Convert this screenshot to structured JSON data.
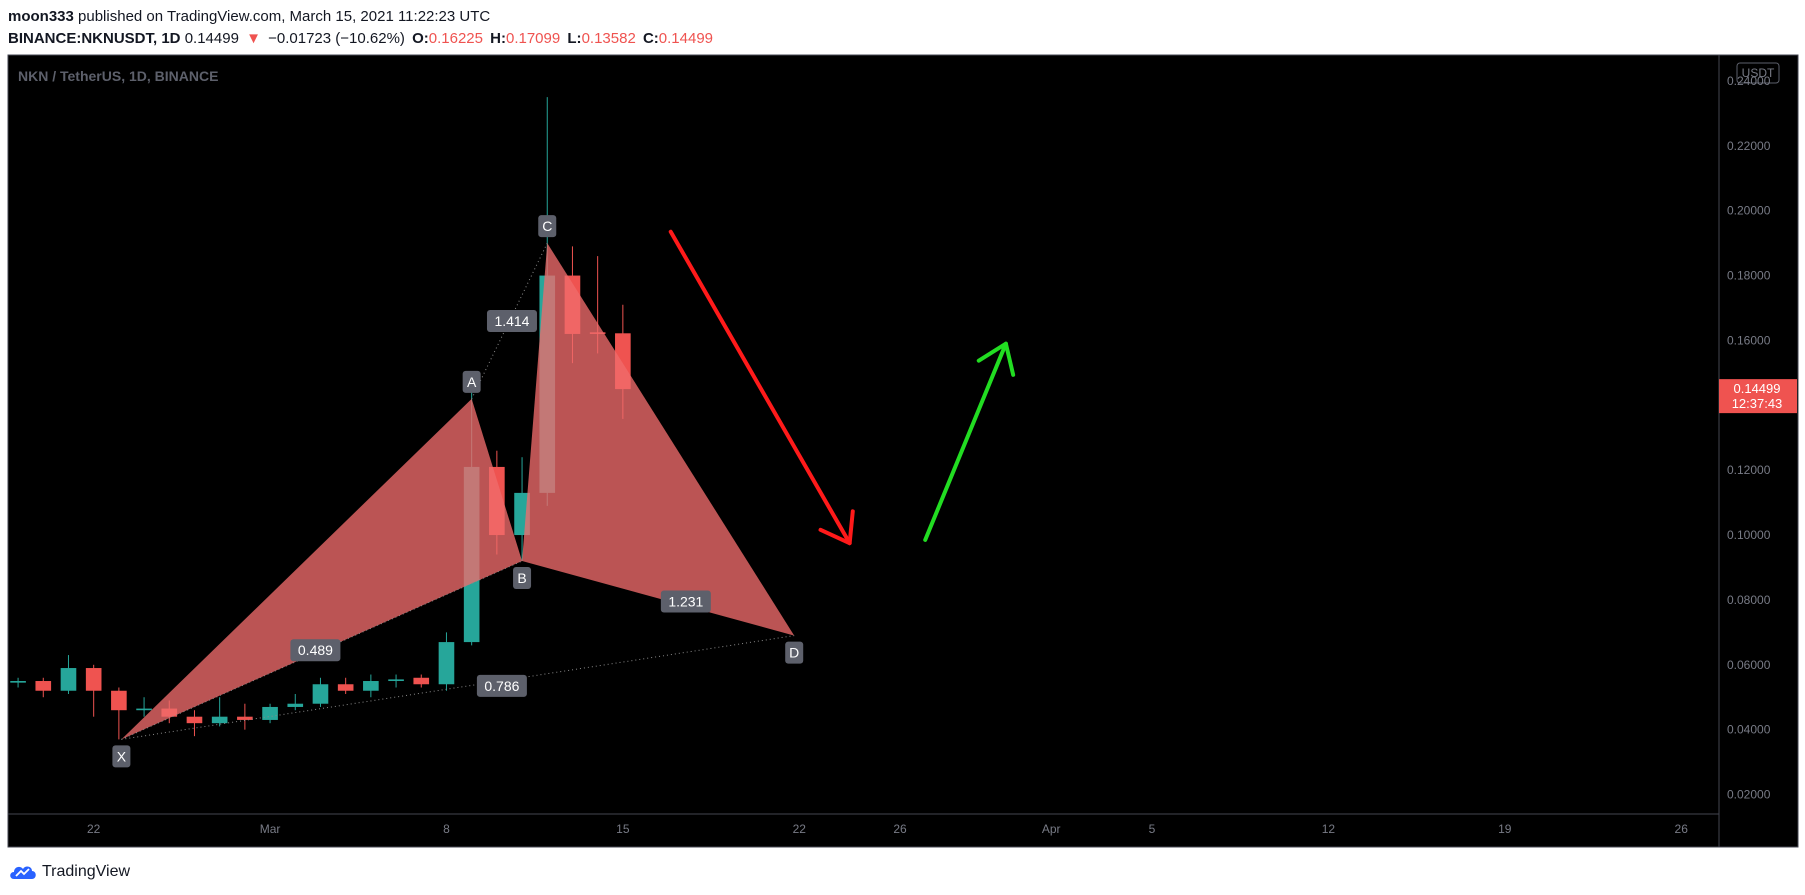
{
  "header": {
    "author": "moon333",
    "published": "published on TradingView.com, March 15, 2021 11:22:23 UTC",
    "symbol": "BINANCE:NKNUSDT, 1D",
    "last": "0.14499",
    "change_arrow": "▼",
    "change": "−0.01723 (−10.62%)",
    "o_label": "O:",
    "o_value": "0.16225",
    "h_label": "H:",
    "h_value": "0.17099",
    "l_label": "L:",
    "l_value": "0.13582",
    "c_label": "C:",
    "c_value": "0.14499"
  },
  "footer": {
    "brand": "TradingView",
    "logo_icon": "tradingview-cloud-icon"
  },
  "chart_data": {
    "type": "candlestick",
    "title": "NKN / TetherUS, 1D, BINANCE",
    "currency_badge": "USDT",
    "y_ticks": [
      "0.24000",
      "0.22000",
      "0.20000",
      "0.18000",
      "0.16000",
      "0.14000",
      "0.12000",
      "0.10000",
      "0.08000",
      "0.06000",
      "0.04000",
      "0.02000"
    ],
    "ylim": [
      0.014,
      0.248
    ],
    "x_ticks": [
      {
        "label": "22",
        "day": -7
      },
      {
        "label": "Mar",
        "day": 0
      },
      {
        "label": "8",
        "day": 7
      },
      {
        "label": "15",
        "day": 14
      },
      {
        "label": "22",
        "day": 21
      },
      {
        "label": "26",
        "day": 25
      },
      {
        "label": "Apr",
        "day": 31
      },
      {
        "label": "5",
        "day": 35
      },
      {
        "label": "12",
        "day": 42
      },
      {
        "label": "19",
        "day": 49
      },
      {
        "label": "26",
        "day": 56
      }
    ],
    "x_range_days": [
      -10.4,
      57.5
    ],
    "price_label": {
      "value": 0.14499,
      "price": "0.14499",
      "timer": "12:37:43",
      "color": "#ef5350"
    },
    "colors": {
      "up": "#26a69a",
      "down": "#ef5350",
      "pattern_fill": "#ef6c6c",
      "background": "#000000"
    },
    "candles": [
      {
        "day": -10,
        "o": 0.0545,
        "h": 0.056,
        "l": 0.053,
        "c": 0.055
      },
      {
        "day": -9,
        "o": 0.055,
        "h": 0.056,
        "l": 0.05,
        "c": 0.052
      },
      {
        "day": -8,
        "o": 0.052,
        "h": 0.063,
        "l": 0.051,
        "c": 0.059
      },
      {
        "day": -7,
        "o": 0.059,
        "h": 0.06,
        "l": 0.044,
        "c": 0.052
      },
      {
        "day": -6,
        "o": 0.052,
        "h": 0.053,
        "l": 0.037,
        "c": 0.046
      },
      {
        "day": -5,
        "o": 0.046,
        "h": 0.05,
        "l": 0.044,
        "c": 0.0465
      },
      {
        "day": -4,
        "o": 0.0465,
        "h": 0.049,
        "l": 0.042,
        "c": 0.044
      },
      {
        "day": -3,
        "o": 0.044,
        "h": 0.046,
        "l": 0.038,
        "c": 0.042
      },
      {
        "day": -2,
        "o": 0.042,
        "h": 0.05,
        "l": 0.041,
        "c": 0.044
      },
      {
        "day": -1,
        "o": 0.044,
        "h": 0.048,
        "l": 0.04,
        "c": 0.043
      },
      {
        "day": 0,
        "o": 0.043,
        "h": 0.048,
        "l": 0.042,
        "c": 0.047
      },
      {
        "day": 1,
        "o": 0.047,
        "h": 0.051,
        "l": 0.046,
        "c": 0.048
      },
      {
        "day": 2,
        "o": 0.048,
        "h": 0.056,
        "l": 0.047,
        "c": 0.054
      },
      {
        "day": 3,
        "o": 0.054,
        "h": 0.056,
        "l": 0.051,
        "c": 0.052
      },
      {
        "day": 4,
        "o": 0.052,
        "h": 0.057,
        "l": 0.05,
        "c": 0.055
      },
      {
        "day": 5,
        "o": 0.055,
        "h": 0.057,
        "l": 0.053,
        "c": 0.0555
      },
      {
        "day": 6,
        "o": 0.056,
        "h": 0.057,
        "l": 0.053,
        "c": 0.054
      },
      {
        "day": 7,
        "o": 0.054,
        "h": 0.07,
        "l": 0.052,
        "c": 0.067
      },
      {
        "day": 8,
        "o": 0.067,
        "h": 0.144,
        "l": 0.066,
        "c": 0.121
      },
      {
        "day": 9,
        "o": 0.121,
        "h": 0.126,
        "l": 0.094,
        "c": 0.1
      },
      {
        "day": 10,
        "o": 0.1,
        "h": 0.124,
        "l": 0.092,
        "c": 0.113
      },
      {
        "day": 11,
        "o": 0.113,
        "h": 0.235,
        "l": 0.109,
        "c": 0.18
      },
      {
        "day": 12,
        "o": 0.18,
        "h": 0.189,
        "l": 0.153,
        "c": 0.162
      },
      {
        "day": 13,
        "o": 0.1625,
        "h": 0.186,
        "l": 0.156,
        "c": 0.162
      },
      {
        "day": 14,
        "o": 0.1622,
        "h": 0.171,
        "l": 0.1358,
        "c": 0.145
      }
    ],
    "harmonic_pattern": {
      "points": [
        {
          "label": "X",
          "day": -5.9,
          "price": 0.037
        },
        {
          "label": "A",
          "day": 8.0,
          "price": 0.142
        },
        {
          "label": "B",
          "day": 10.0,
          "price": 0.092
        },
        {
          "label": "C",
          "day": 11.0,
          "price": 0.19
        },
        {
          "label": "D",
          "day": 20.8,
          "price": 0.069
        }
      ],
      "ratios": [
        {
          "label": "0.489",
          "day": 1.8,
          "price": 0.0645
        },
        {
          "label": "1.414",
          "day": 9.6,
          "price": 0.166
        },
        {
          "label": "1.231",
          "day": 16.5,
          "price": 0.0795
        },
        {
          "label": "0.786",
          "day": 9.2,
          "price": 0.0535
        }
      ]
    },
    "annotations": [
      {
        "type": "arrow",
        "color": "#ff1a1a",
        "from": {
          "day": 15.9,
          "price": 0.1935
        },
        "to": {
          "day": 23.0,
          "price": 0.0975
        }
      },
      {
        "type": "arrow",
        "color": "#22dd22",
        "from": {
          "day": 26.0,
          "price": 0.0985
        },
        "to": {
          "day": 29.2,
          "price": 0.159
        }
      }
    ]
  }
}
